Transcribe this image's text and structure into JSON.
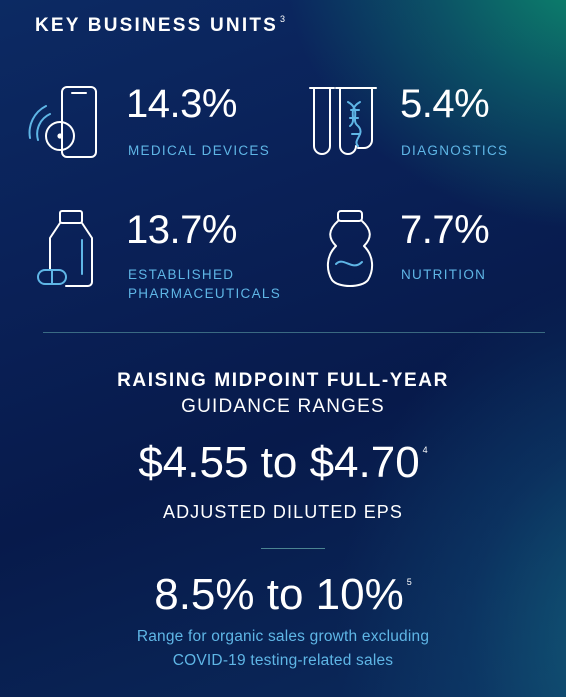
{
  "header": {
    "title": "KEY BUSINESS UNITS",
    "footnote": "3"
  },
  "units": [
    {
      "percent": "14.3%",
      "label_line1": "MEDICAL DEVICES",
      "label_line2": "",
      "icon": "medical-device-icon"
    },
    {
      "percent": "5.4%",
      "label_line1": "DIAGNOSTICS",
      "label_line2": "",
      "icon": "test-tube-dna-icon"
    },
    {
      "percent": "13.7%",
      "label_line1": "ESTABLISHED",
      "label_line2": "PHARMACEUTICALS",
      "icon": "medicine-bottle-icon"
    },
    {
      "percent": "7.7%",
      "label_line1": "NUTRITION",
      "label_line2": "",
      "icon": "nutrition-bottle-icon"
    }
  ],
  "guidance": {
    "title_line1": "RAISING MIDPOINT FULL-YEAR",
    "title_line2": "GUIDANCE RANGES",
    "eps_value": "$4.55 to $4.70",
    "eps_footnote": "4",
    "eps_label": "ADJUSTED DILUTED EPS",
    "growth_value": "8.5% to 10%",
    "growth_footnote": "5",
    "growth_note_line1": "Range for organic sales growth excluding",
    "growth_note_line2": "COVID-19 testing-related sales"
  },
  "colors": {
    "accent_blue": "#5fb6e6",
    "text": "#ffffff"
  }
}
